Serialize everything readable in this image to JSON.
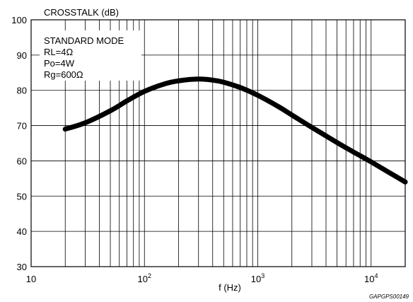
{
  "chart_data": {
    "type": "line",
    "title": "CROSSTALK  (dB)",
    "xlabel": "f (Hz)",
    "ylabel": "",
    "xscale": "log",
    "xlim": [
      10,
      20000
    ],
    "ylim": [
      30,
      100
    ],
    "grid": true,
    "x_tick_labels": [
      {
        "value": 10,
        "base": "10",
        "exp": ""
      },
      {
        "value": 100,
        "base": "10",
        "exp": "2"
      },
      {
        "value": 1000,
        "base": "10",
        "exp": "3"
      },
      {
        "value": 10000,
        "base": "10",
        "exp": "4"
      }
    ],
    "y_ticks": [
      30,
      40,
      50,
      60,
      70,
      80,
      90,
      100
    ],
    "series": [
      {
        "x": [
          20,
          30,
          50,
          70,
          100,
          150,
          200,
          300,
          400,
          500,
          700,
          1000,
          1500,
          2000,
          3000,
          5000,
          7000,
          10000,
          20000
        ],
        "y": [
          69,
          70.8,
          74.2,
          77,
          79.7,
          81.8,
          82.7,
          83.2,
          82.9,
          82.3,
          80.8,
          78.6,
          75.5,
          73,
          69.5,
          65.2,
          62.5,
          59.7,
          54
        ]
      }
    ],
    "annotation": [
      "STANDARD MODE",
      "RL=4Ω",
      "Po=4W",
      "Rg=600Ω"
    ],
    "footer_code": "GAPGPS00149",
    "line_color": "#000000"
  }
}
